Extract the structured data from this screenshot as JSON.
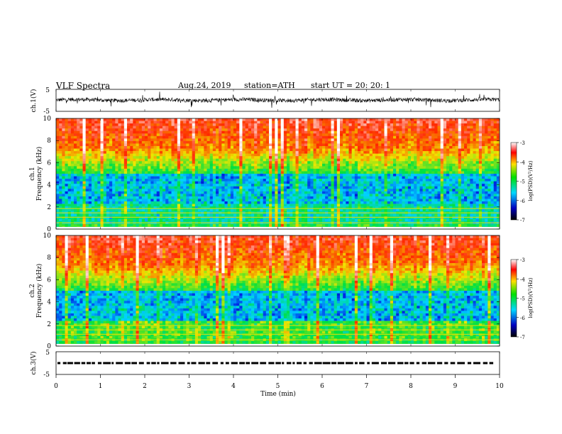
{
  "header": {
    "title": "VLF  Spectra",
    "date": "Aug.24, 2019",
    "station": "station=ATH",
    "start_ut": "start  UT  =    20: 20: 1"
  },
  "chart_data": [
    {
      "type": "line",
      "ylabel": "ch.1(V)",
      "ylim": [
        -5,
        5
      ],
      "yticks": [
        "5",
        "-5"
      ],
      "xlim": [
        0,
        10
      ],
      "note_values": "noisy waveform centred near 0 V, mostly within about -2 to +2 V"
    },
    {
      "type": "heatmap",
      "ylabel": "Frequency  (kHz)",
      "ylabel_prefix": "ch.1",
      "ylim": [
        0,
        10
      ],
      "yticks": [
        "0",
        "2",
        "4",
        "6",
        "8",
        "10"
      ],
      "xlim": [
        0,
        10
      ],
      "colorbar": {
        "label": "log(PSD)(V²/Hz)",
        "range": [
          -7,
          -3
        ],
        "ticks": [
          "-3",
          "-4",
          "-5",
          "-6",
          "-7"
        ]
      }
    },
    {
      "type": "heatmap",
      "ylabel": "Frequency  (kHz)",
      "ylabel_prefix": "ch.2",
      "ylim": [
        0,
        10
      ],
      "yticks": [
        "0",
        "2",
        "4",
        "6",
        "8",
        "10"
      ],
      "xlim": [
        0,
        10
      ],
      "colorbar": {
        "label": "log(PSD)(V²/Hz)",
        "range": [
          -7,
          -3
        ],
        "ticks": [
          "-3",
          "-4",
          "-5",
          "-6",
          "-7"
        ]
      }
    },
    {
      "type": "line",
      "ylabel": "ch.3(V)",
      "ylim": [
        -5,
        5
      ],
      "yticks": [
        "5",
        "-5"
      ],
      "xlim": [
        0,
        10
      ],
      "note_values": "dashed trace near 0 V"
    }
  ],
  "x_axis": {
    "label": "Time  (min)",
    "ticks": [
      "0",
      "1",
      "2",
      "3",
      "4",
      "5",
      "6",
      "7",
      "8",
      "9",
      "10"
    ]
  },
  "colors": {
    "heat_low": "#000060",
    "heat_mid": "#00d8ff",
    "heat_mid2": "#00e000",
    "heat_high": "#ffe000",
    "heat_top": "#ff0000"
  }
}
